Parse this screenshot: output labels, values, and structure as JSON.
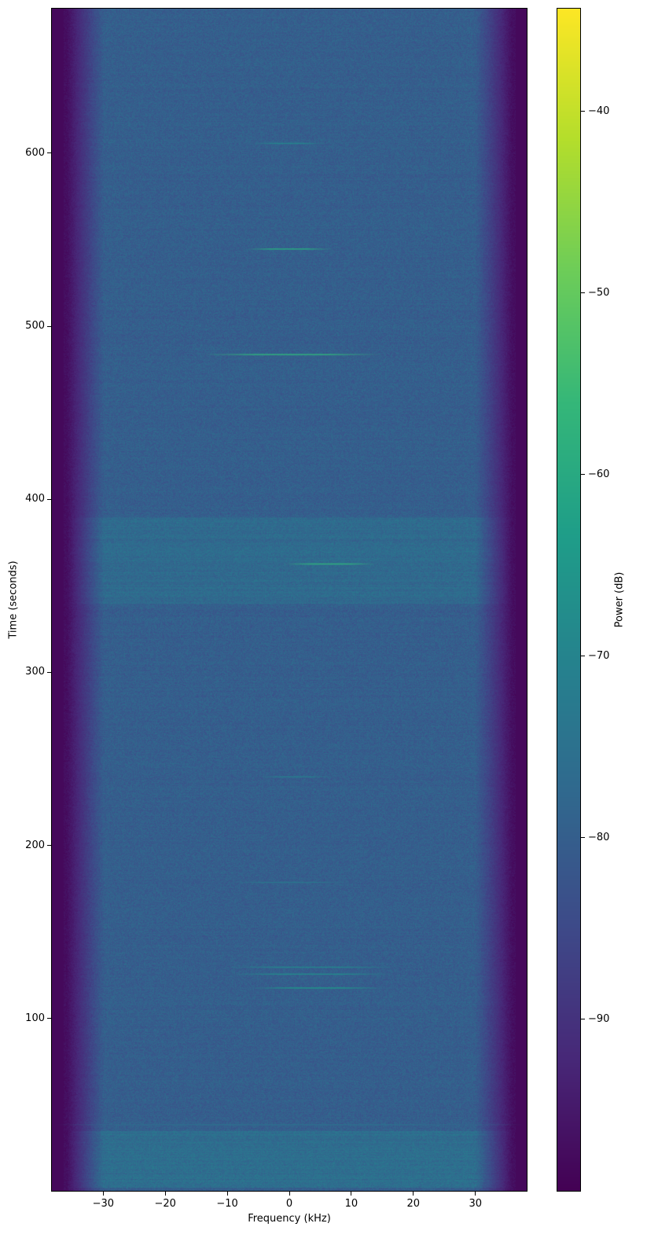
{
  "chart_data": {
    "type": "heatmap",
    "title": "",
    "xlabel": "Frequency (kHz)",
    "ylabel": "Time (seconds)",
    "xlim": [
      -38.4,
      38.4
    ],
    "ylim": [
      0,
      684
    ],
    "xticks": [
      -30,
      -20,
      -10,
      0,
      10,
      20,
      30
    ],
    "xtick_labels": [
      "−30",
      "−20",
      "−10",
      "0",
      "10",
      "20",
      "30"
    ],
    "yticks": [
      100,
      200,
      300,
      400,
      500,
      600
    ],
    "ytick_labels": [
      "100",
      "200",
      "300",
      "400",
      "500",
      "600"
    ],
    "colormap": "viridis",
    "colorbar": {
      "label": "Power (dB)",
      "range": [
        -99.5,
        -34.3
      ],
      "ticks": [
        -40,
        -50,
        -60,
        -70,
        -80,
        -90
      ],
      "tick_labels": [
        "−40",
        "−50",
        "−60",
        "−70",
        "−80",
        "−90"
      ]
    },
    "background_power_db": -80,
    "edge_power_db": -97,
    "passband_edge_khz": 35,
    "bursts": [
      {
        "time": 606,
        "freq": [
          -6,
          6
        ],
        "power": -70
      },
      {
        "time": 545,
        "freq": [
          -7,
          7
        ],
        "power": -60
      },
      {
        "time": 484,
        "freq": [
          -14,
          15
        ],
        "power": -58
      },
      {
        "time": 363,
        "freq": [
          -1,
          14
        ],
        "power": -58
      },
      {
        "time": 240,
        "freq": [
          -5,
          7
        ],
        "power": -72
      },
      {
        "time": 179,
        "freq": [
          -10,
          10
        ],
        "power": -74
      },
      {
        "time": 130,
        "freq": [
          -10,
          17
        ],
        "power": -70
      },
      {
        "time": 126,
        "freq": [
          -10,
          17
        ],
        "power": -68
      },
      {
        "time": 118,
        "freq": [
          -6,
          15
        ],
        "power": -66
      },
      {
        "time": 39,
        "freq": [
          -38,
          38
        ],
        "power": -76
      }
    ],
    "elevated_bands": [
      {
        "time": [
          340,
          390
        ],
        "power": -76
      },
      {
        "time": [
          2,
          35
        ],
        "power": -75
      }
    ],
    "grid": false
  }
}
